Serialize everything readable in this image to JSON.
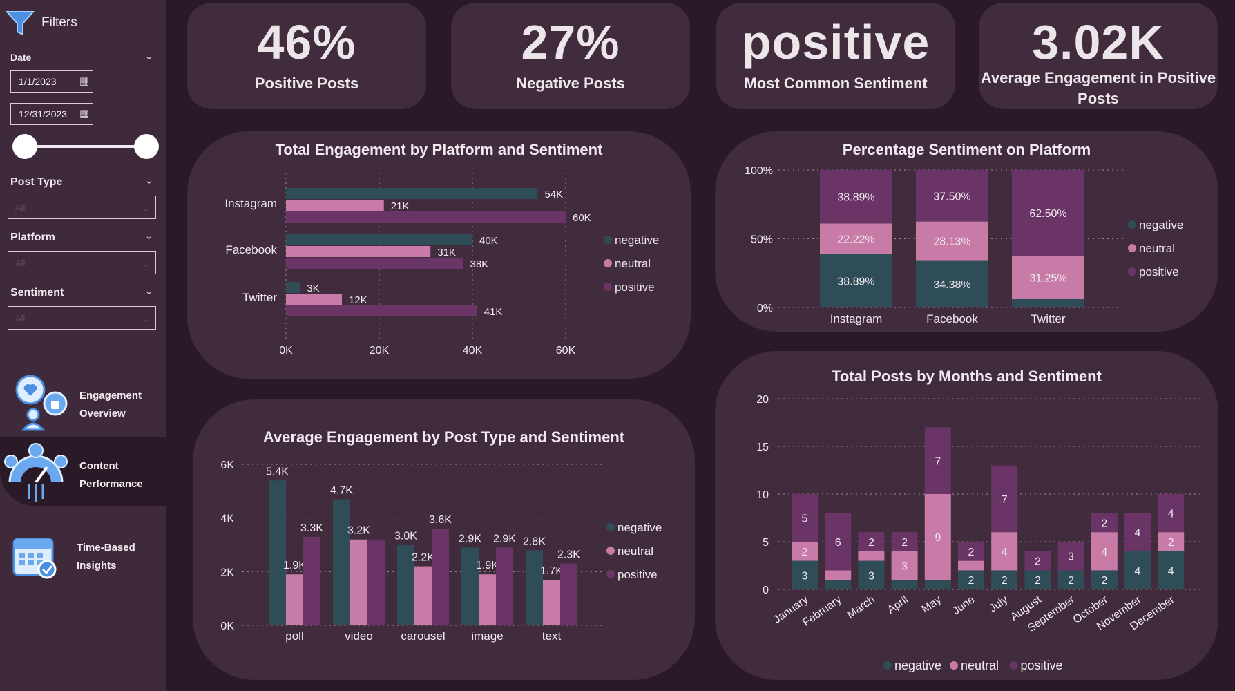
{
  "sidebar": {
    "filters_title": "Filters",
    "date_label": "Date",
    "date_start": "1/1/2023",
    "date_end": "12/31/2023",
    "post_type_label": "Post Type",
    "post_type_value": "All",
    "platform_label": "Platform",
    "platform_value": "All",
    "sentiment_label": "Sentiment",
    "sentiment_value": "All",
    "nav": [
      {
        "line1": "Engagement",
        "line2": "Overview"
      },
      {
        "line1": "Content",
        "line2": "Performance"
      },
      {
        "line1": "Time-Based",
        "line2": "Insights"
      }
    ]
  },
  "kpis": [
    {
      "value": "46%",
      "label": "Positive Posts"
    },
    {
      "value": "27%",
      "label": "Negative Posts"
    },
    {
      "value": "positive",
      "label": "Most Common Sentiment"
    },
    {
      "value": "3.02K",
      "label_line1": "Average Engagement in Positive",
      "label_line2": "Posts"
    }
  ],
  "colors": {
    "negative": "#2f4d57",
    "neutral": "#c77ba6",
    "positive": "#6a3467",
    "panel": "#412c3e",
    "sidebar": "#3e2a3b",
    "background": "#2a1a28"
  },
  "legend": [
    "negative",
    "neutral",
    "positive"
  ],
  "chart_data": [
    {
      "id": "platform_engagement",
      "type": "bar",
      "orientation": "horizontal",
      "title": "Total Engagement by Platform and Sentiment",
      "categories": [
        "Instagram",
        "Facebook",
        "Twitter"
      ],
      "series": [
        {
          "name": "negative",
          "values": [
            54000,
            40000,
            3000
          ],
          "labels": [
            "54K",
            "40K",
            "3K"
          ]
        },
        {
          "name": "neutral",
          "values": [
            21000,
            31000,
            12000
          ],
          "labels": [
            "21K",
            "31K",
            "12K"
          ]
        },
        {
          "name": "positive",
          "values": [
            60000,
            38000,
            41000
          ],
          "labels": [
            "60K",
            "38K",
            "41K"
          ]
        }
      ],
      "xlim": [
        0,
        60000
      ],
      "ticks": [
        {
          "v": 0,
          "label": "0K"
        },
        {
          "v": 20000,
          "label": "20K"
        },
        {
          "v": 40000,
          "label": "40K"
        },
        {
          "v": 60000,
          "label": "60K"
        }
      ],
      "grid": true,
      "legend_position": "right"
    },
    {
      "id": "platform_percentage",
      "type": "bar",
      "stacked": true,
      "title": "Percentage Sentiment on Platform",
      "categories": [
        "Instagram",
        "Facebook",
        "Twitter"
      ],
      "series": [
        {
          "name": "negative",
          "values": [
            38.89,
            34.38,
            6.25
          ],
          "labels": [
            "38.89%",
            "34.38%",
            ""
          ]
        },
        {
          "name": "neutral",
          "values": [
            22.22,
            28.13,
            31.25
          ],
          "labels": [
            "22.22%",
            "28.13%",
            "31.25%"
          ]
        },
        {
          "name": "positive",
          "values": [
            38.89,
            37.5,
            62.5
          ],
          "labels": [
            "38.89%",
            "37.50%",
            "62.50%"
          ]
        }
      ],
      "ylim": [
        0,
        100
      ],
      "ticks": [
        {
          "v": 0,
          "label": "0%"
        },
        {
          "v": 50,
          "label": "50%"
        },
        {
          "v": 100,
          "label": "100%"
        }
      ],
      "grid": true,
      "legend_position": "right"
    },
    {
      "id": "post_type_engagement",
      "type": "bar",
      "title": "Average Engagement by Post Type and Sentiment",
      "categories": [
        "poll",
        "video",
        "carousel",
        "image",
        "text"
      ],
      "series": [
        {
          "name": "negative",
          "values": [
            5400,
            4700,
            3000,
            2900,
            2800
          ],
          "labels": [
            "5.4K",
            "4.7K",
            "3.0K",
            "2.9K",
            "2.8K"
          ]
        },
        {
          "name": "neutral",
          "values": [
            1900,
            3200,
            2200,
            1900,
            1700
          ],
          "labels": [
            "1.9K",
            "3.2K",
            "2.2K",
            "1.9K",
            "1.7K"
          ]
        },
        {
          "name": "positive",
          "values": [
            3300,
            3200,
            3600,
            2900,
            2300
          ],
          "labels": [
            "3.3K",
            "",
            "3.6K",
            "2.9K",
            "2.3K"
          ]
        }
      ],
      "ylim": [
        0,
        6000
      ],
      "ticks": [
        {
          "v": 0,
          "label": "0K"
        },
        {
          "v": 2000,
          "label": "2K"
        },
        {
          "v": 4000,
          "label": "4K"
        },
        {
          "v": 6000,
          "label": "6K"
        }
      ],
      "grid": true,
      "legend_position": "right"
    },
    {
      "id": "monthly_posts",
      "type": "bar",
      "stacked": true,
      "title": "Total Posts by Months and Sentiment",
      "categories": [
        "January",
        "February",
        "March",
        "April",
        "May",
        "June",
        "July",
        "August",
        "September",
        "October",
        "November",
        "December"
      ],
      "series": [
        {
          "name": "negative",
          "values": [
            3,
            1,
            3,
            1,
            1,
            2,
            2,
            2,
            2,
            2,
            4,
            4
          ],
          "labels": [
            "3",
            "",
            "3",
            "",
            "",
            "2",
            "2",
            "2",
            "2",
            "2",
            "4",
            "4"
          ]
        },
        {
          "name": "neutral",
          "values": [
            2,
            1,
            1,
            3,
            9,
            1,
            4,
            0,
            0,
            4,
            0,
            2
          ],
          "labels": [
            "2",
            "",
            "",
            "3",
            "9",
            "",
            "4",
            "",
            "",
            "4",
            "",
            "2"
          ]
        },
        {
          "name": "positive",
          "values": [
            5,
            6,
            2,
            2,
            7,
            2,
            7,
            2,
            3,
            2,
            4,
            4
          ],
          "labels": [
            "5",
            "6",
            "2",
            "2",
            "7",
            "2",
            "7",
            "2",
            "3",
            "2",
            "4",
            "4"
          ]
        }
      ],
      "ylim": [
        0,
        20
      ],
      "ticks": [
        {
          "v": 0,
          "label": "0"
        },
        {
          "v": 5,
          "label": "5"
        },
        {
          "v": 10,
          "label": "10"
        },
        {
          "v": 15,
          "label": "15"
        },
        {
          "v": 20,
          "label": "20"
        }
      ],
      "grid": true,
      "legend_position": "bottom"
    }
  ]
}
